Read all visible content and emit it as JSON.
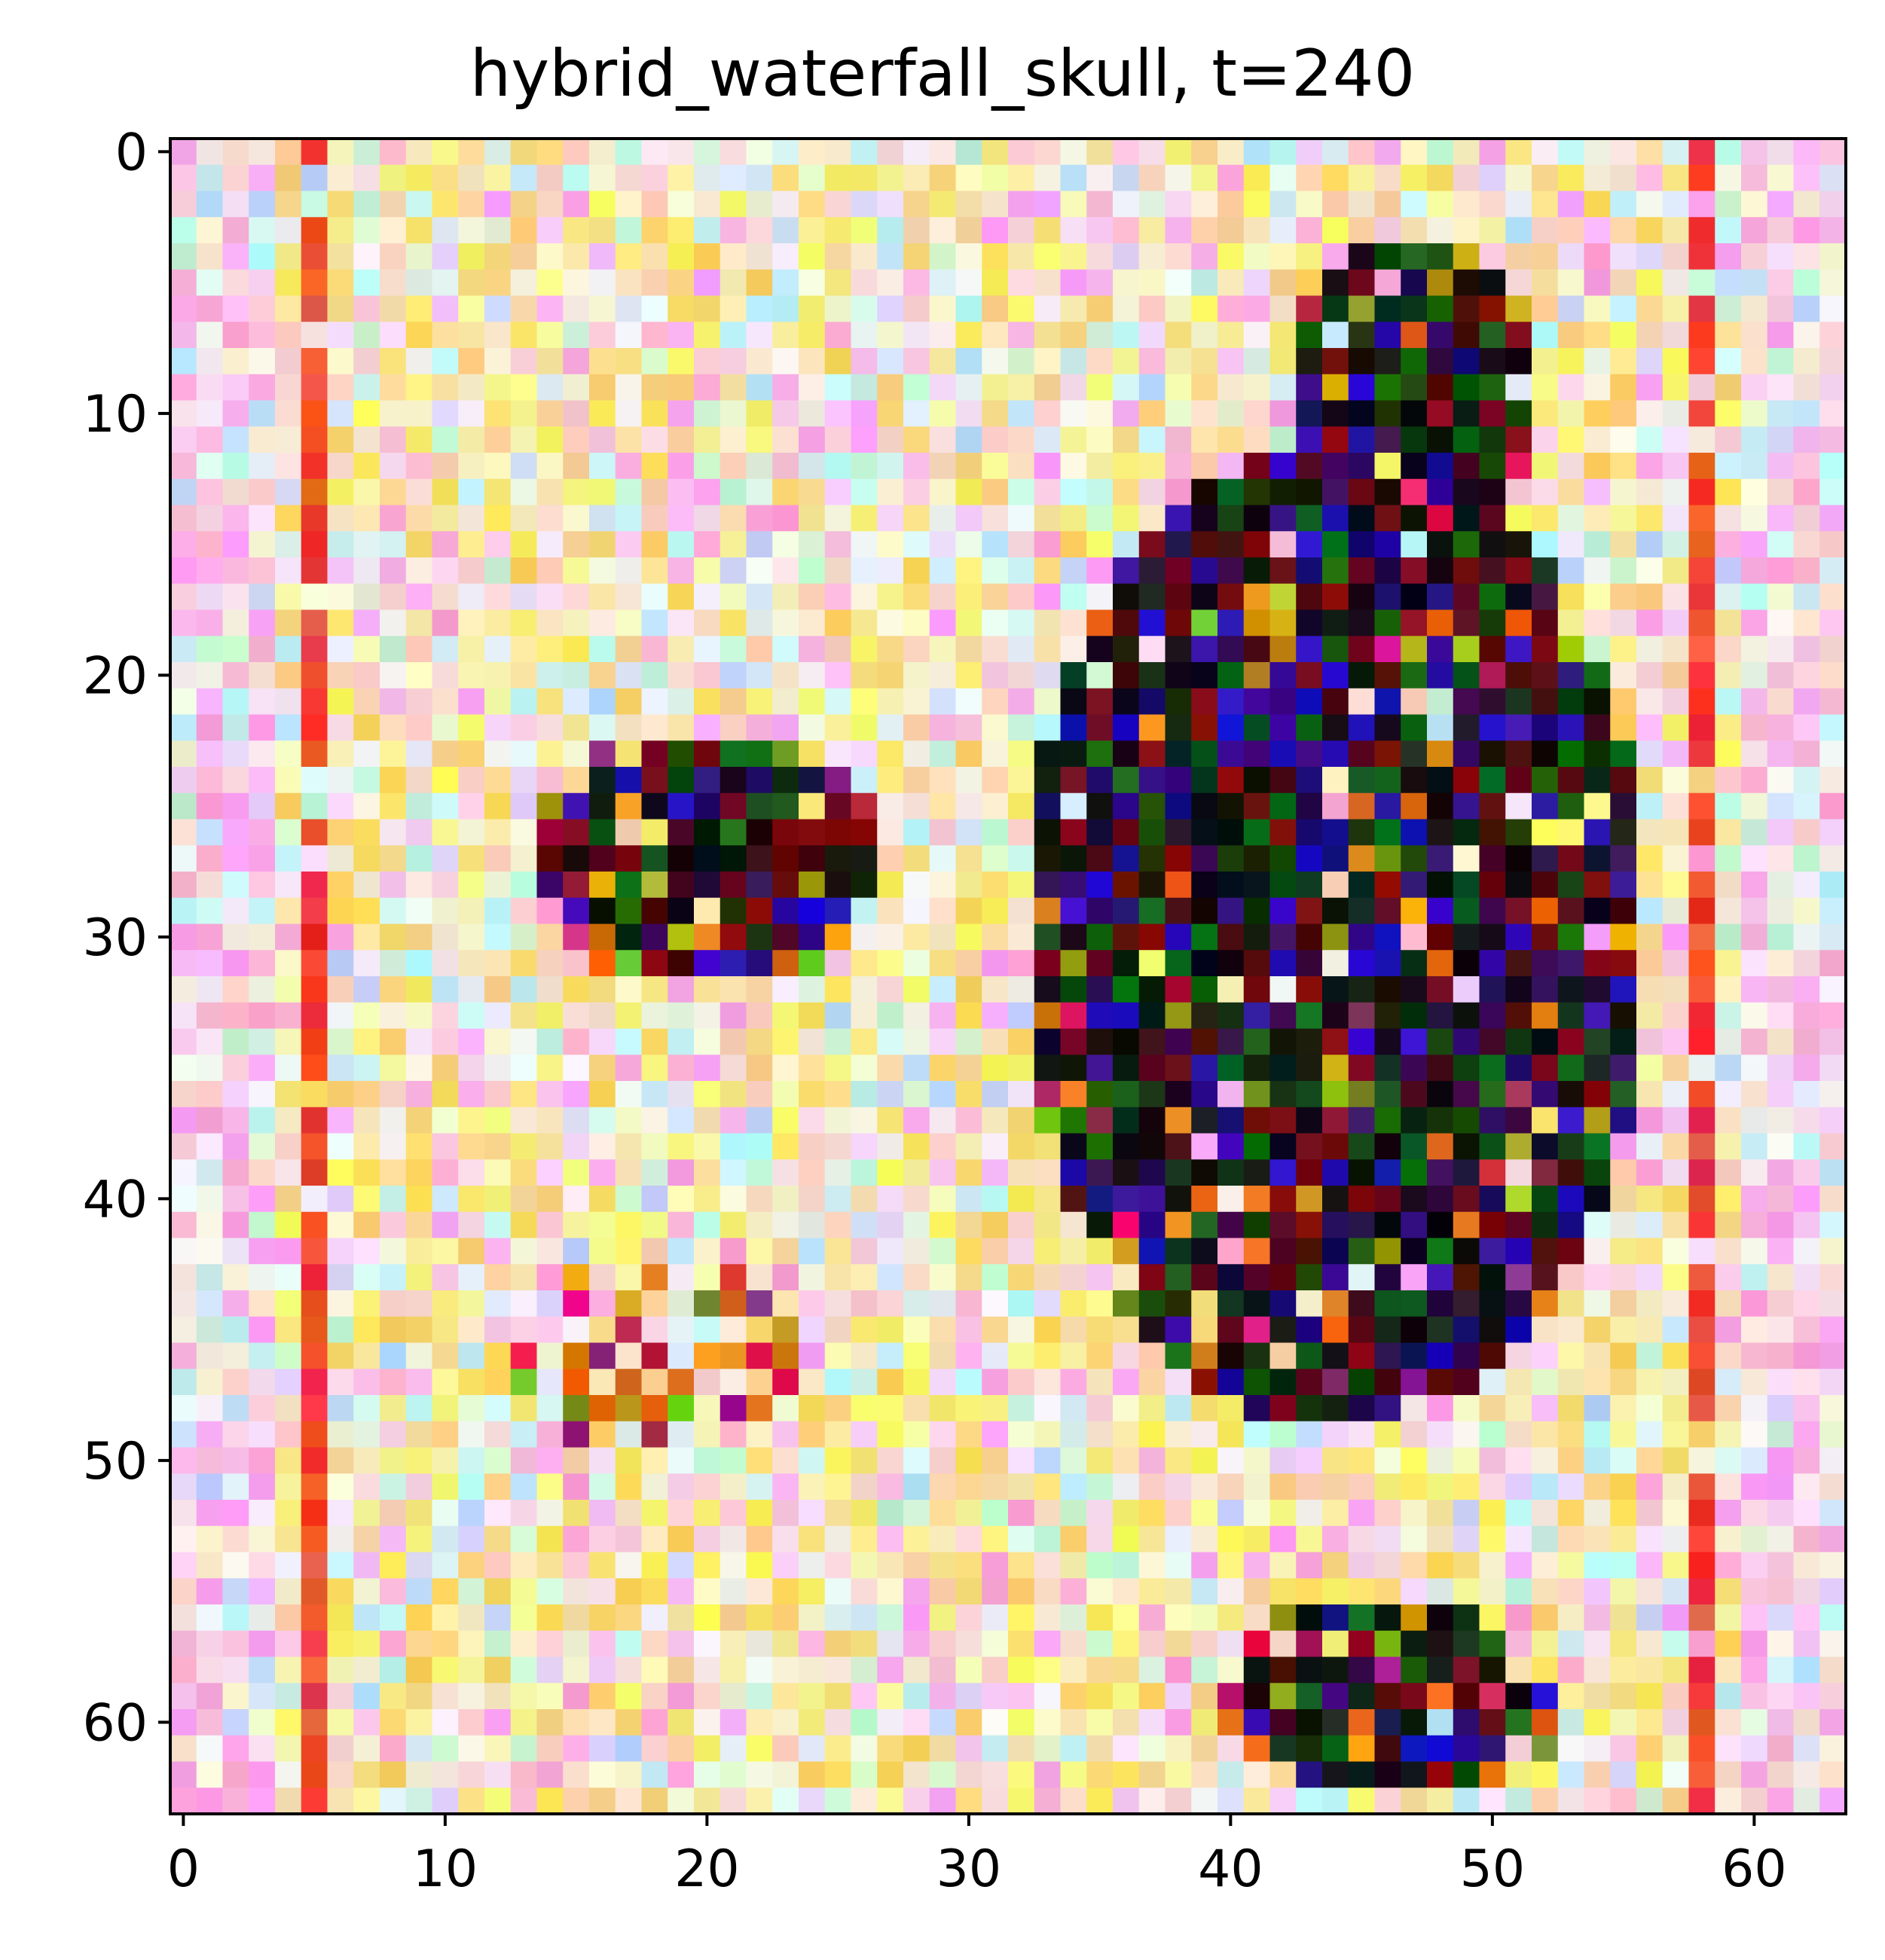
{
  "title": "hybrid_waterfall_skull, t=240",
  "image": {
    "grid_rows": 64,
    "grid_cols": 64,
    "content": "noisy pixel-art image of a waterfall/skull hybrid at diffusion step t=240"
  },
  "axes": {
    "x_ticks": [
      0,
      10,
      20,
      30,
      40,
      50,
      60
    ],
    "y_ticks": [
      0,
      10,
      20,
      30,
      40,
      50,
      60
    ],
    "xlim": [
      -0.5,
      63.5
    ],
    "ylim": [
      63.5,
      -0.5
    ]
  },
  "colors": {
    "frame": "#000000",
    "background": "#ffffff"
  }
}
